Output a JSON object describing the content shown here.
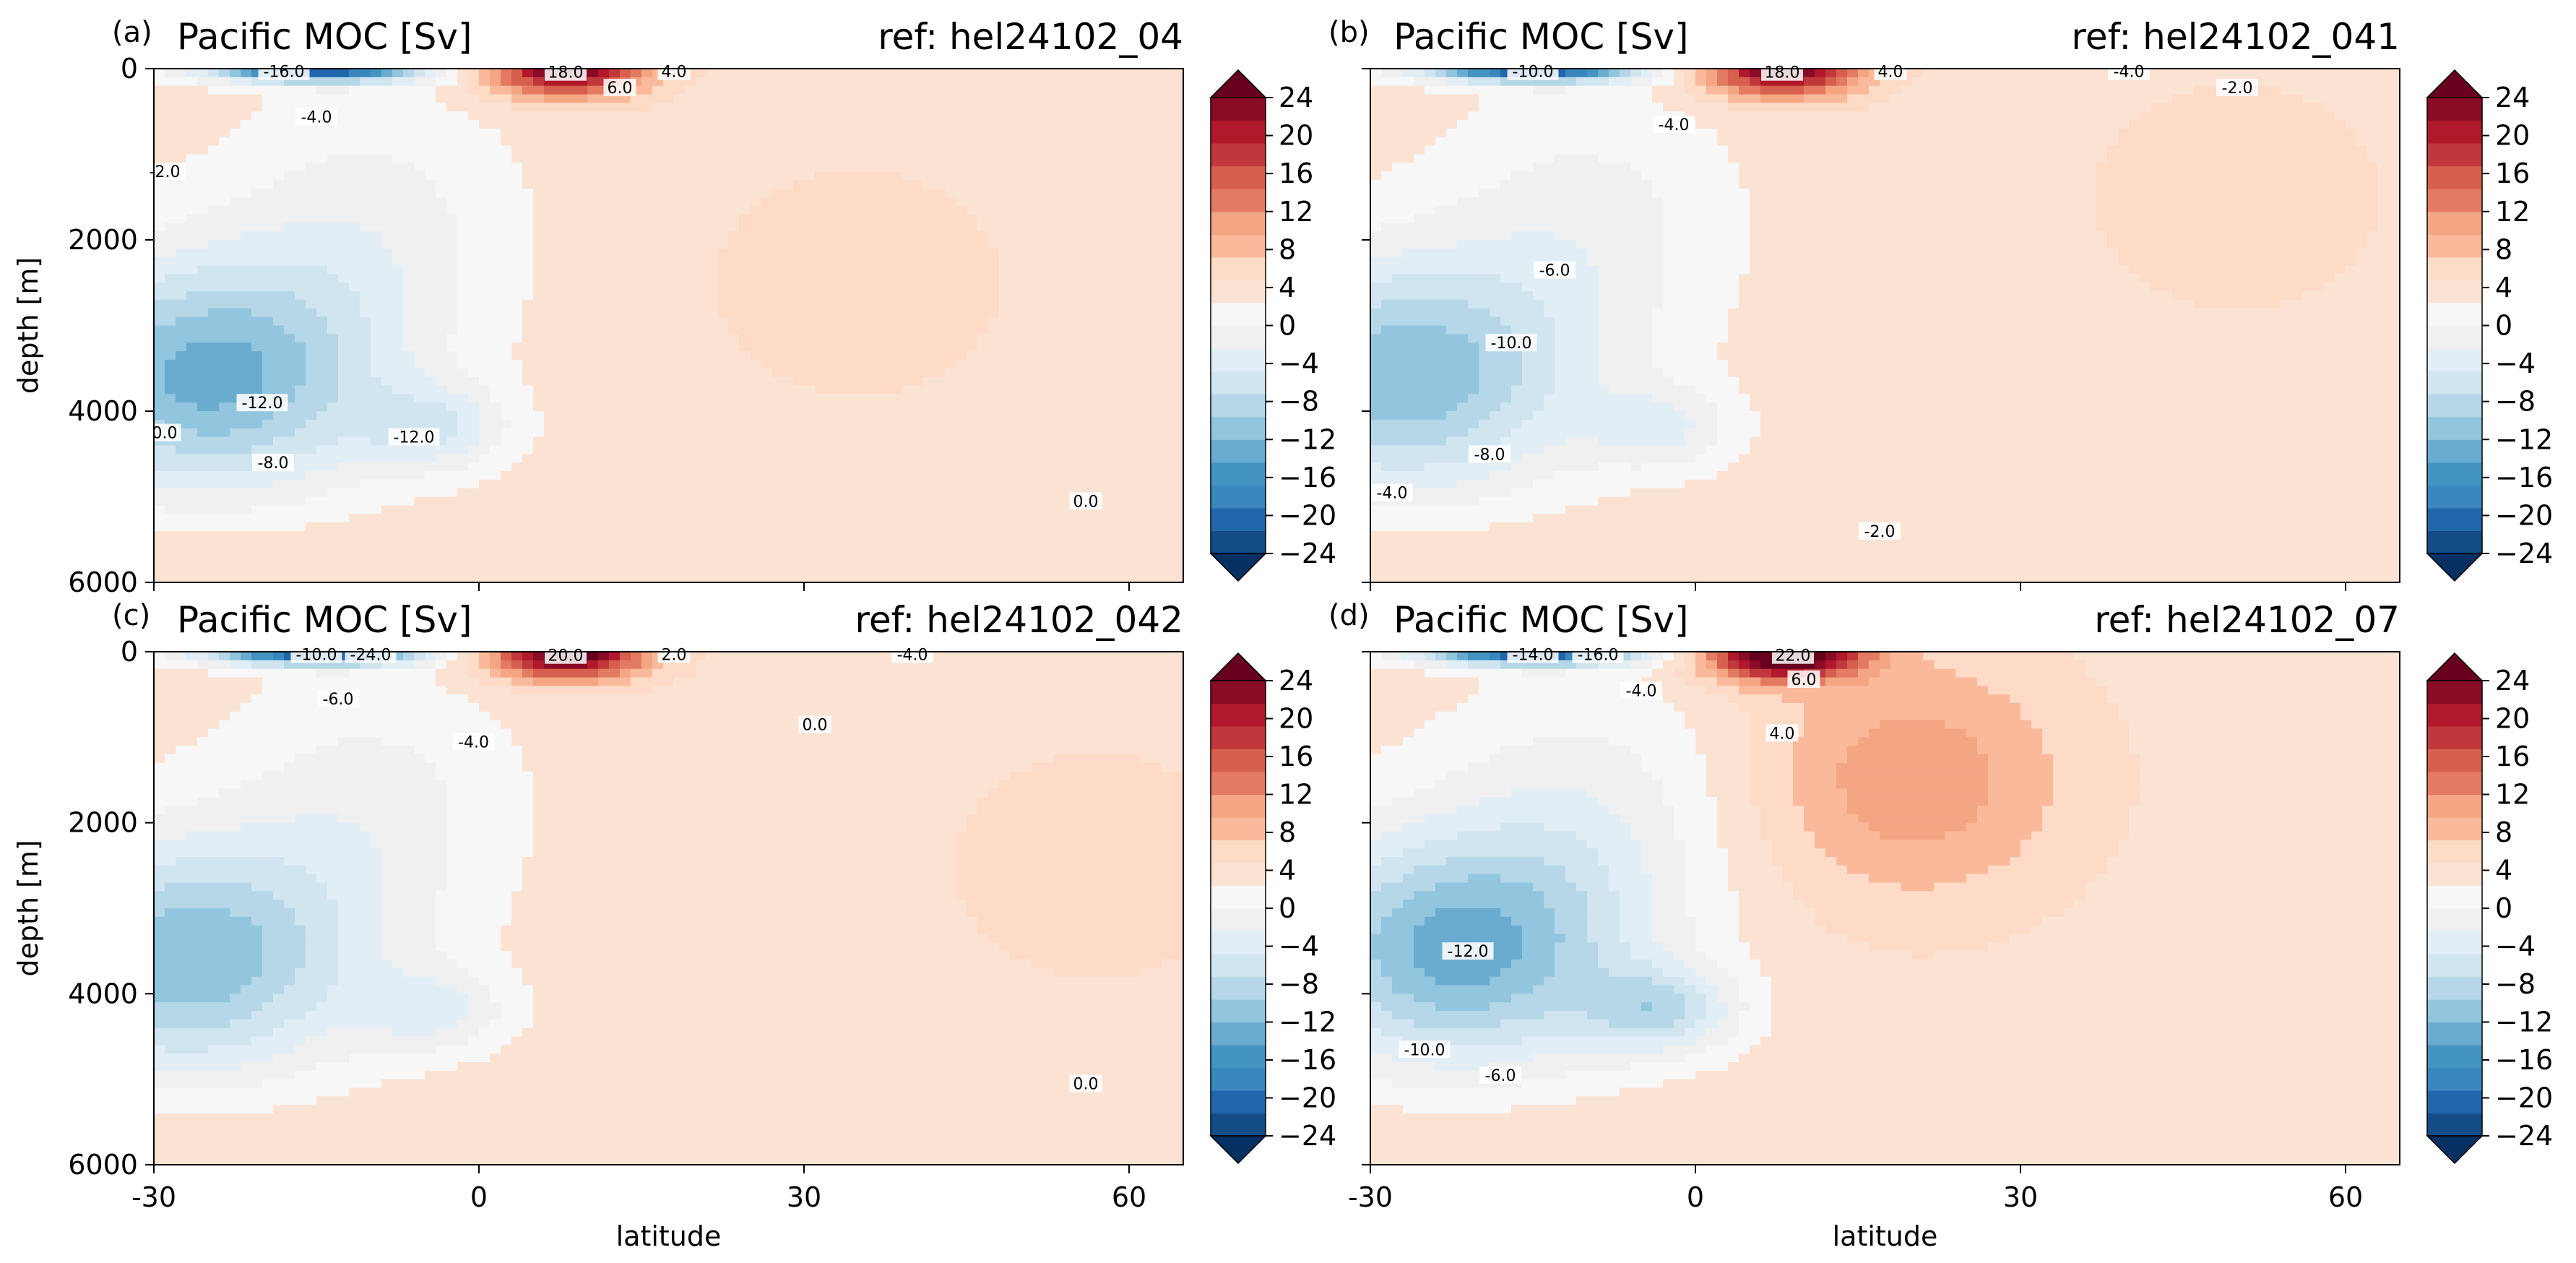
{
  "figure": {
    "colorbar_ticks": [
      "24",
      "20",
      "16",
      "12",
      "8",
      "4",
      "0",
      "−4",
      "−8",
      "−12",
      "−16",
      "−20",
      "−24"
    ],
    "colorbar_range": [
      -24,
      24
    ],
    "colorbar_step": 2,
    "palette": [
      "#053061",
      "#134c87",
      "#2166ac",
      "#3a87bd",
      "#4393c3",
      "#6aacd0",
      "#92c5de",
      "#b5d7e8",
      "#d1e5f0",
      "#e2eef5",
      "#f0f0f0",
      "#f7f7f7",
      "#fbe3d4",
      "#fddbc7",
      "#f9b99a",
      "#f4a582",
      "#e27b62",
      "#d6604d",
      "#c0383c",
      "#b2182b",
      "#8a0b25",
      "#67001f"
    ]
  },
  "chart_data": [
    {
      "type": "contour",
      "panel_label": "(a)",
      "title": "Pacific MOC [Sv]",
      "ref": "ref: hel24102_04",
      "ylabel": "depth [m]",
      "xlabel": "",
      "xlim": [
        -30,
        65
      ],
      "ylim": [
        6000,
        0
      ],
      "xticks": [
        "-30",
        "0",
        "30",
        "60"
      ],
      "yticks": [
        "0",
        "2000",
        "4000",
        "6000"
      ],
      "features": [
        {
          "name": "deep southern cell",
          "center": [
            -25,
            3600
          ],
          "min": -14
        },
        {
          "name": "abyssal cell",
          "center": [
            -4,
            4200
          ],
          "min": -13
        },
        {
          "name": "tropical surface cell",
          "center": [
            8,
            200
          ],
          "max": 18
        },
        {
          "name": "northern positive region",
          "center": [
            35,
            2500
          ],
          "max": 0.5
        }
      ],
      "contour_labels": [
        {
          "text": "-16.0",
          "x": -18,
          "y": 30
        },
        {
          "text": "-4.0",
          "x": -15,
          "y": 560
        },
        {
          "text": "-2.0",
          "x": -29,
          "y": 1200
        },
        {
          "text": "-12.0",
          "x": -20,
          "y": 3900
        },
        {
          "text": "-12.0",
          "x": -6,
          "y": 4300
        },
        {
          "text": "0.0",
          "x": -29,
          "y": 4250
        },
        {
          "text": "-8.0",
          "x": -19,
          "y": 4600
        },
        {
          "text": "18.0",
          "x": 8,
          "y": 40
        },
        {
          "text": "6.0",
          "x": 13,
          "y": 220
        },
        {
          "text": "4.0",
          "x": 18,
          "y": 30
        },
        {
          "text": "0.0",
          "x": 56,
          "y": 5050
        }
      ]
    },
    {
      "type": "contour",
      "panel_label": "(b)",
      "title": "Pacific MOC [Sv]",
      "ref": "ref: hel24102_041",
      "ylabel": "",
      "xlabel": "",
      "xlim": [
        -30,
        65
      ],
      "ylim": [
        6000,
        0
      ],
      "xticks": [
        "-30",
        "0",
        "30",
        "60"
      ],
      "yticks": [
        "0",
        "2000",
        "4000",
        "6000"
      ],
      "features": [
        {
          "name": "deep southern cell",
          "center": [
            -27,
            3600
          ],
          "min": -13
        },
        {
          "name": "abyssal cell",
          "center": [
            -3,
            4200
          ],
          "min": -12
        },
        {
          "name": "tropical surface cell",
          "center": [
            8,
            200
          ],
          "max": 18
        },
        {
          "name": "northern positive region",
          "center": [
            50,
            1500
          ],
          "max": 0.5
        }
      ],
      "contour_labels": [
        {
          "text": "-10.0",
          "x": -15,
          "y": 30
        },
        {
          "text": "-4.0",
          "x": -2,
          "y": 650
        },
        {
          "text": "-6.0",
          "x": -13,
          "y": 2350
        },
        {
          "text": "-10.0",
          "x": -17,
          "y": 3200
        },
        {
          "text": "-8.0",
          "x": -19,
          "y": 4500
        },
        {
          "text": "-4.0",
          "x": -28,
          "y": 4950
        },
        {
          "text": "-2.0",
          "x": 17,
          "y": 5400
        },
        {
          "text": "18.0",
          "x": 8,
          "y": 40
        },
        {
          "text": "4.0",
          "x": 18,
          "y": 30
        },
        {
          "text": "-4.0",
          "x": 40,
          "y": 30
        },
        {
          "text": "-2.0",
          "x": 50,
          "y": 220
        }
      ]
    },
    {
      "type": "contour",
      "panel_label": "(c)",
      "title": "Pacific MOC [Sv]",
      "ref": "ref: hel24102_042",
      "ylabel": "depth [m]",
      "xlabel": "latitude",
      "xlim": [
        -30,
        65
      ],
      "ylim": [
        6000,
        0
      ],
      "xticks": [
        "-30",
        "0",
        "30",
        "60"
      ],
      "yticks": [
        "0",
        "2000",
        "4000",
        "6000"
      ],
      "features": [
        {
          "name": "deep southern cell",
          "center": [
            -27,
            3600
          ],
          "min": -13
        },
        {
          "name": "abyssal cell",
          "center": [
            -4,
            4200
          ],
          "min": -12
        },
        {
          "name": "tropical surface cell",
          "center": [
            8,
            200
          ],
          "max": 20
        },
        {
          "name": "northern positive region",
          "center": [
            57,
            2500
          ],
          "max": 0.5
        }
      ],
      "contour_labels": [
        {
          "text": "-10.0",
          "x": -15,
          "y": 30
        },
        {
          "text": "-24.0",
          "x": -10,
          "y": 30
        },
        {
          "text": "-6.0",
          "x": -13,
          "y": 550
        },
        {
          "text": "-4.0",
          "x": -0.5,
          "y": 1050
        },
        {
          "text": "20.0",
          "x": 8,
          "y": 40
        },
        {
          "text": "2.0",
          "x": 18,
          "y": 30
        },
        {
          "text": "-4.0",
          "x": 40,
          "y": 30
        },
        {
          "text": "0.0",
          "x": 31,
          "y": 850
        },
        {
          "text": "0.0",
          "x": 56,
          "y": 5050
        }
      ]
    },
    {
      "type": "contour",
      "panel_label": "(d)",
      "title": "Pacific MOC [Sv]",
      "ref": "ref: hel24102_07",
      "ylabel": "",
      "xlabel": "latitude",
      "xlim": [
        -30,
        65
      ],
      "ylim": [
        6000,
        0
      ],
      "xticks": [
        "-30",
        "0",
        "30",
        "60"
      ],
      "yticks": [
        "0",
        "2000",
        "4000",
        "6000"
      ],
      "features": [
        {
          "name": "deep southern cell",
          "center": [
            -22,
            3500
          ],
          "min": -14
        },
        {
          "name": "abyssal cell",
          "center": [
            -3,
            4200
          ],
          "min": -15
        },
        {
          "name": "tropical surface cell",
          "center": [
            8,
            200
          ],
          "max": 22
        },
        {
          "name": "northern positive region",
          "center": [
            20,
            1500
          ],
          "max": 5
        }
      ],
      "contour_labels": [
        {
          "text": "-14.0",
          "x": -15,
          "y": 30
        },
        {
          "text": "-16.0",
          "x": -9,
          "y": 30
        },
        {
          "text": "-4.0",
          "x": -5,
          "y": 450
        },
        {
          "text": "22.0",
          "x": 9,
          "y": 40
        },
        {
          "text": "6.0",
          "x": 10,
          "y": 320
        },
        {
          "text": "4.0",
          "x": 8,
          "y": 950
        },
        {
          "text": "-12.0",
          "x": -21,
          "y": 3500
        },
        {
          "text": "-10.0",
          "x": -25,
          "y": 4650
        },
        {
          "text": "-6.0",
          "x": -18,
          "y": 4950
        }
      ]
    }
  ]
}
